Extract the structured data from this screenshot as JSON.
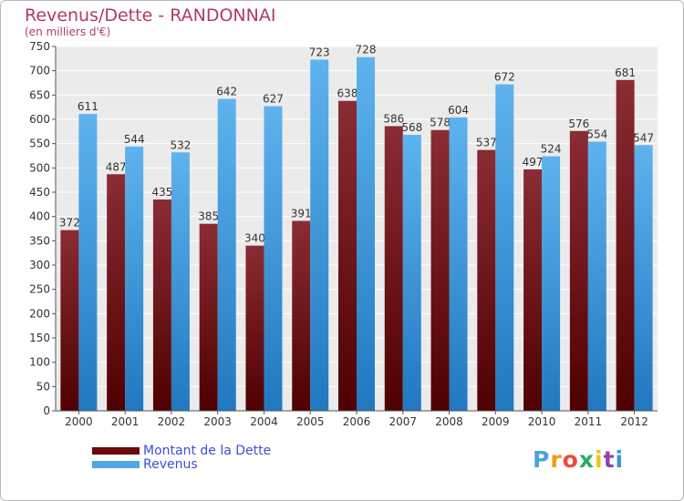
{
  "title": "Revenus/Dette - RANDONNAI",
  "subtitle": "(en milliers d'€)",
  "logo_text": "Proxiti",
  "chart_data": {
    "type": "bar",
    "title": "Revenus/Dette - RANDONNAI",
    "subtitle": "(en milliers d'€)",
    "xlabel": "",
    "ylabel": "",
    "ylim": [
      0,
      750
    ],
    "ytick_step": 50,
    "grid": true,
    "legend_position": "bottom-left",
    "categories": [
      "2000",
      "2001",
      "2002",
      "2003",
      "2004",
      "2005",
      "2006",
      "2007",
      "2008",
      "2009",
      "2010",
      "2011",
      "2012"
    ],
    "series": [
      {
        "name": "Montant de la Dette",
        "color": "#7a2229",
        "values": [
          372,
          487,
          435,
          385,
          340,
          391,
          638,
          586,
          578,
          537,
          497,
          576,
          681
        ]
      },
      {
        "name": "Revenus",
        "color": "#4ea6e6",
        "values": [
          611,
          544,
          532,
          642,
          627,
          723,
          728,
          568,
          604,
          672,
          524,
          554,
          547
        ]
      }
    ]
  },
  "legend": [
    {
      "label": "Montant de la Dette",
      "color": "#6a0a0a"
    },
    {
      "label": "Revenus",
      "color": "#4ea6e6"
    }
  ]
}
